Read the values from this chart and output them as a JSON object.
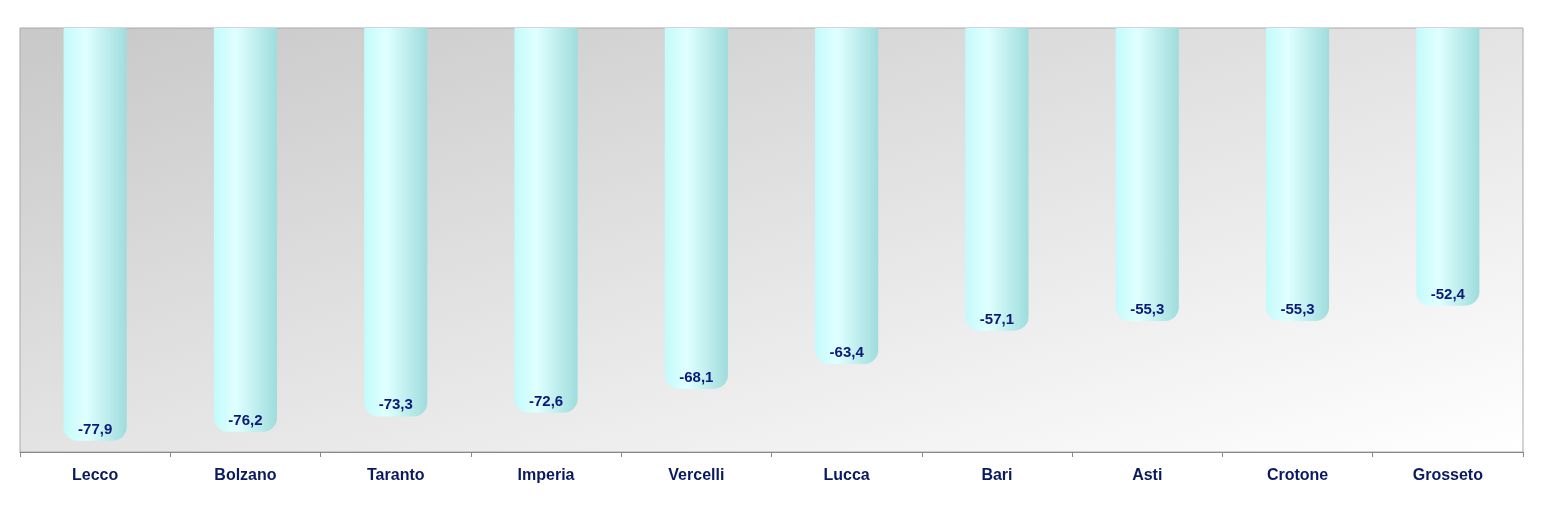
{
  "chart_data": {
    "type": "bar",
    "categories": [
      "Lecco",
      "Bolzano",
      "Taranto",
      "Imperia",
      "Vercelli",
      "Lucca",
      "Bari",
      "Asti",
      "Crotone",
      "Grosseto"
    ],
    "values": [
      -77.9,
      -76.2,
      -73.3,
      -72.6,
      -68.1,
      -63.4,
      -57.1,
      -55.3,
      -55.3,
      -52.4
    ],
    "value_labels": [
      "-77,9",
      "-76,2",
      "-73,3",
      "-72,6",
      "-68,1",
      "-63,4",
      "-57,1",
      "-55,3",
      "-55,3",
      "-52,4"
    ],
    "color": "#c4fafa"
  }
}
